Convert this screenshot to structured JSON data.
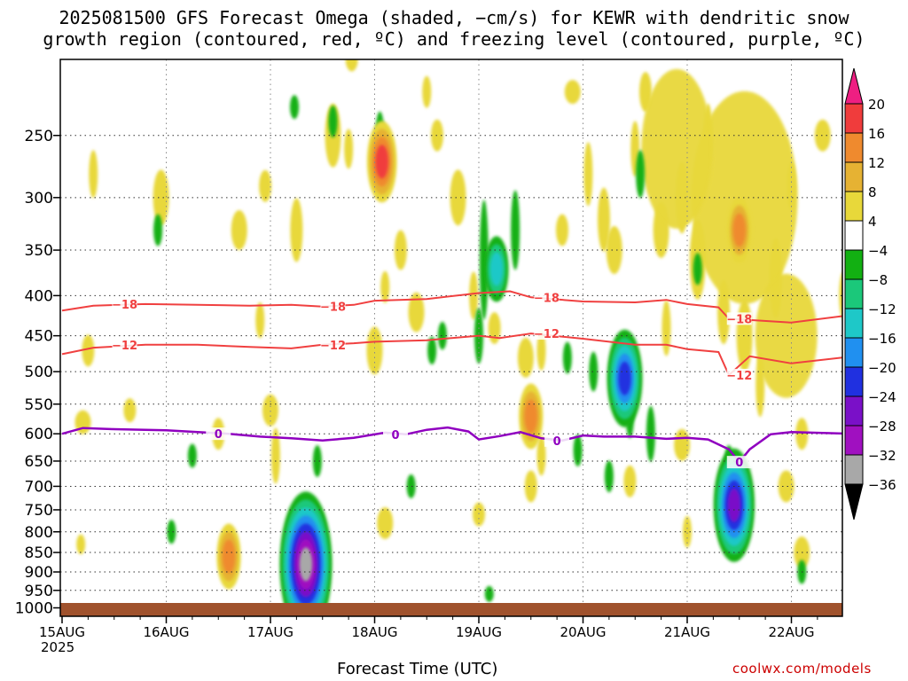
{
  "title_line1": "2025081500 GFS Forecast Omega (shaded, −cm/s) for KEWR with dendritic snow",
  "title_line2": "growth region (contoured, red, ºC) and freezing level (contoured, purple, ºC)",
  "credit": "coolwx.com/models",
  "colors": {
    "red_contour": "#f04040",
    "purple_contour": "#9000c0",
    "ground": "#a0522d"
  },
  "chart_data": {
    "type": "heatmap",
    "xlabel": "Forecast Time (UTC)",
    "year_label": "2025",
    "x_ticks": [
      "15AUG",
      "16AUG",
      "17AUG",
      "18AUG",
      "19AUG",
      "20AUG",
      "21AUG",
      "22AUG"
    ],
    "x_range_days": [
      0,
      7.6
    ],
    "y_ticks": [
      250,
      300,
      350,
      400,
      450,
      500,
      550,
      600,
      650,
      700,
      750,
      800,
      850,
      900,
      950,
      1000
    ],
    "y_range_hpa": [
      200,
      1025
    ],
    "y_scale": "log",
    "grid": true,
    "colorbar": {
      "labels": [
        "20",
        "16",
        "12",
        "8",
        "4",
        "−4",
        "−8",
        "−12",
        "−16",
        "−20",
        "−24",
        "−28",
        "−32",
        "−36"
      ],
      "colors": [
        "#ee1f82",
        "#f03c3c",
        "#ef8a2e",
        "#e6b233",
        "#e8d83a",
        "#ffffff",
        "#12b012",
        "#1bc87a",
        "#1ec8c8",
        "#2090f0",
        "#2030e0",
        "#7a10c8",
        "#a010c0",
        "#a8a8a8",
        "#000000"
      ]
    },
    "contours": [
      {
        "label": "−18",
        "color": "red",
        "points": [
          [
            0,
            418
          ],
          [
            0.3,
            412
          ],
          [
            0.8,
            410
          ],
          [
            1.3,
            411
          ],
          [
            1.8,
            412
          ],
          [
            2.2,
            411
          ],
          [
            2.5,
            413
          ],
          [
            2.8,
            411
          ],
          [
            3.0,
            406
          ],
          [
            3.5,
            404
          ],
          [
            4.0,
            397
          ],
          [
            4.3,
            395
          ],
          [
            4.5,
            402
          ],
          [
            5.0,
            407
          ],
          [
            5.5,
            408
          ],
          [
            5.8,
            405
          ],
          [
            6.0,
            410
          ],
          [
            6.3,
            414
          ],
          [
            6.4,
            428
          ],
          [
            7.0,
            433
          ],
          [
            7.6,
            423
          ]
        ]
      },
      {
        "label": "−12",
        "color": "red",
        "points": [
          [
            0,
            475
          ],
          [
            0.3,
            466
          ],
          [
            0.8,
            462
          ],
          [
            1.3,
            462
          ],
          [
            1.8,
            465
          ],
          [
            2.2,
            467
          ],
          [
            2.5,
            462
          ],
          [
            2.8,
            460
          ],
          [
            3.0,
            458
          ],
          [
            3.5,
            456
          ],
          [
            4.0,
            450
          ],
          [
            4.2,
            453
          ],
          [
            4.5,
            447
          ],
          [
            5.0,
            454
          ],
          [
            5.5,
            462
          ],
          [
            5.8,
            462
          ],
          [
            6.0,
            468
          ],
          [
            6.3,
            472
          ],
          [
            6.4,
            505
          ],
          [
            6.6,
            478
          ],
          [
            7.0,
            488
          ],
          [
            7.6,
            478
          ]
        ]
      },
      {
        "label": "0",
        "color": "purple",
        "points": [
          [
            0,
            600
          ],
          [
            0.2,
            590
          ],
          [
            0.5,
            592
          ],
          [
            0.8,
            593
          ],
          [
            1.0,
            594
          ],
          [
            1.3,
            597
          ],
          [
            1.6,
            600
          ],
          [
            1.9,
            605
          ],
          [
            2.2,
            608
          ],
          [
            2.5,
            612
          ],
          [
            2.8,
            607
          ],
          [
            3.1,
            598
          ],
          [
            3.3,
            601
          ],
          [
            3.5,
            593
          ],
          [
            3.7,
            589
          ],
          [
            3.9,
            596
          ],
          [
            4.0,
            610
          ],
          [
            4.2,
            604
          ],
          [
            4.4,
            597
          ],
          [
            4.6,
            608
          ],
          [
            4.8,
            612
          ],
          [
            5.0,
            603
          ],
          [
            5.2,
            605
          ],
          [
            5.5,
            605
          ],
          [
            5.8,
            609
          ],
          [
            6.0,
            607
          ],
          [
            6.2,
            610
          ],
          [
            6.4,
            628
          ],
          [
            6.5,
            652
          ],
          [
            6.6,
            628
          ],
          [
            6.8,
            601
          ],
          [
            7.0,
            597
          ],
          [
            7.6,
            600
          ]
        ]
      }
    ],
    "omega_features": [
      {
        "day": 3.07,
        "p": 270,
        "value": 16
      },
      {
        "day": 4.17,
        "p": 370,
        "value": -12
      },
      {
        "day": 2.34,
        "p": 880,
        "value": -32
      },
      {
        "day": 1.6,
        "p": 860,
        "value": 12
      },
      {
        "day": 6.45,
        "p": 740,
        "value": -24
      },
      {
        "day": 4.5,
        "p": 570,
        "value": 12
      },
      {
        "day": 6.5,
        "p": 330,
        "value": 12
      },
      {
        "day": 5.4,
        "p": 510,
        "value": -20
      }
    ]
  }
}
